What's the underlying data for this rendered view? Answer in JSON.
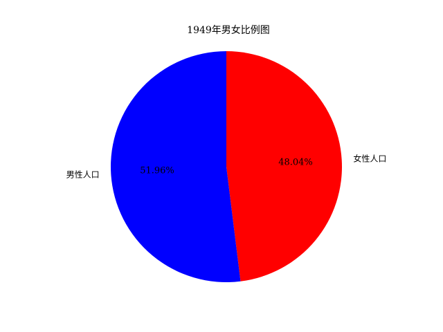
{
  "chart_data": {
    "type": "pie",
    "title": "1949年男女比例图",
    "slices": [
      {
        "label": "女性人口",
        "value": 48.04,
        "pct_label": "48.04%",
        "color": "#ff0000"
      },
      {
        "label": "男性人口",
        "value": 51.96,
        "pct_label": "51.96%",
        "color": "#0000ff"
      }
    ],
    "start_angle_deg": 90,
    "direction": "clockwise"
  }
}
